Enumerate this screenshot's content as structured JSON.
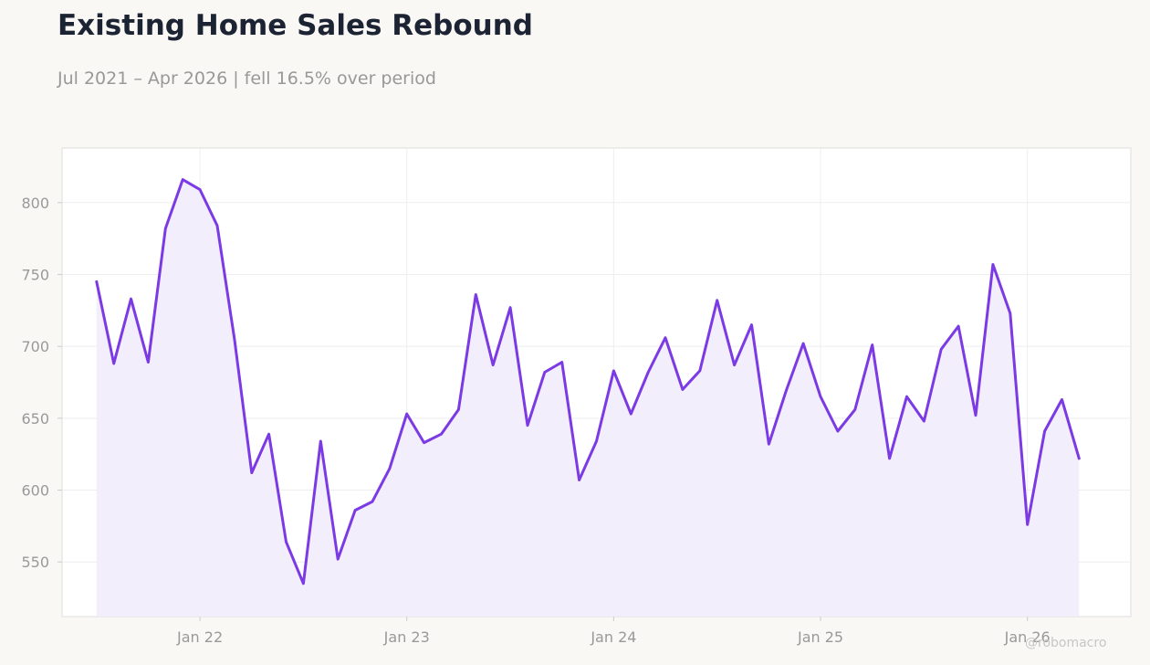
{
  "header": {
    "title": "Existing Home Sales Rebound",
    "subtitle": "Jul 2021 – Apr 2026 | fell 16.5% over period"
  },
  "watermark": "@robomacro",
  "colors": {
    "line": "#7b3ae3",
    "fill": "#f1ecfb",
    "background": "#f9f8f5",
    "plot_background": "#ffffff"
  },
  "chart_data": {
    "type": "area",
    "title": "Existing Home Sales Rebound",
    "subtitle": "Jul 2021 – Apr 2026 | fell 16.5% over period",
    "xlabel": "",
    "ylabel": "",
    "x_ticks": [
      "Jan 22",
      "Jan 23",
      "Jan 24",
      "Jan 25",
      "Jan 26"
    ],
    "y_ticks": [
      550,
      600,
      650,
      700,
      750,
      800
    ],
    "xlim": [
      "2021-05",
      "2026-07"
    ],
    "ylim": [
      512,
      838
    ],
    "grid": true,
    "legend": "none",
    "x": [
      "2021-07",
      "2021-08",
      "2021-09",
      "2021-10",
      "2021-11",
      "2021-12",
      "2022-01",
      "2022-02",
      "2022-03",
      "2022-04",
      "2022-05",
      "2022-06",
      "2022-07",
      "2022-08",
      "2022-09",
      "2022-10",
      "2022-11",
      "2022-12",
      "2023-01",
      "2023-02",
      "2023-03",
      "2023-04",
      "2023-05",
      "2023-06",
      "2023-07",
      "2023-08",
      "2023-09",
      "2023-10",
      "2023-11",
      "2023-12",
      "2024-01",
      "2024-02",
      "2024-03",
      "2024-04",
      "2024-05",
      "2024-06",
      "2024-07",
      "2024-08",
      "2024-09",
      "2024-10",
      "2024-11",
      "2024-12",
      "2025-01",
      "2025-02",
      "2025-03",
      "2025-04",
      "2025-05",
      "2025-06",
      "2025-07",
      "2025-08",
      "2025-09",
      "2025-10",
      "2025-11",
      "2025-12",
      "2026-01",
      "2026-02",
      "2026-03",
      "2026-04"
    ],
    "values": [
      745,
      688,
      733,
      689,
      782,
      816,
      809,
      784,
      705,
      612,
      639,
      564,
      535,
      634,
      552,
      586,
      592,
      615,
      653,
      633,
      639,
      656,
      736,
      687,
      727,
      645,
      682,
      689,
      607,
      634,
      683,
      653,
      682,
      706,
      670,
      683,
      732,
      687,
      715,
      632,
      669,
      702,
      665,
      641,
      656,
      701,
      622,
      665,
      648,
      698,
      714,
      652,
      757,
      723,
      576,
      641,
      663,
      622
    ]
  }
}
